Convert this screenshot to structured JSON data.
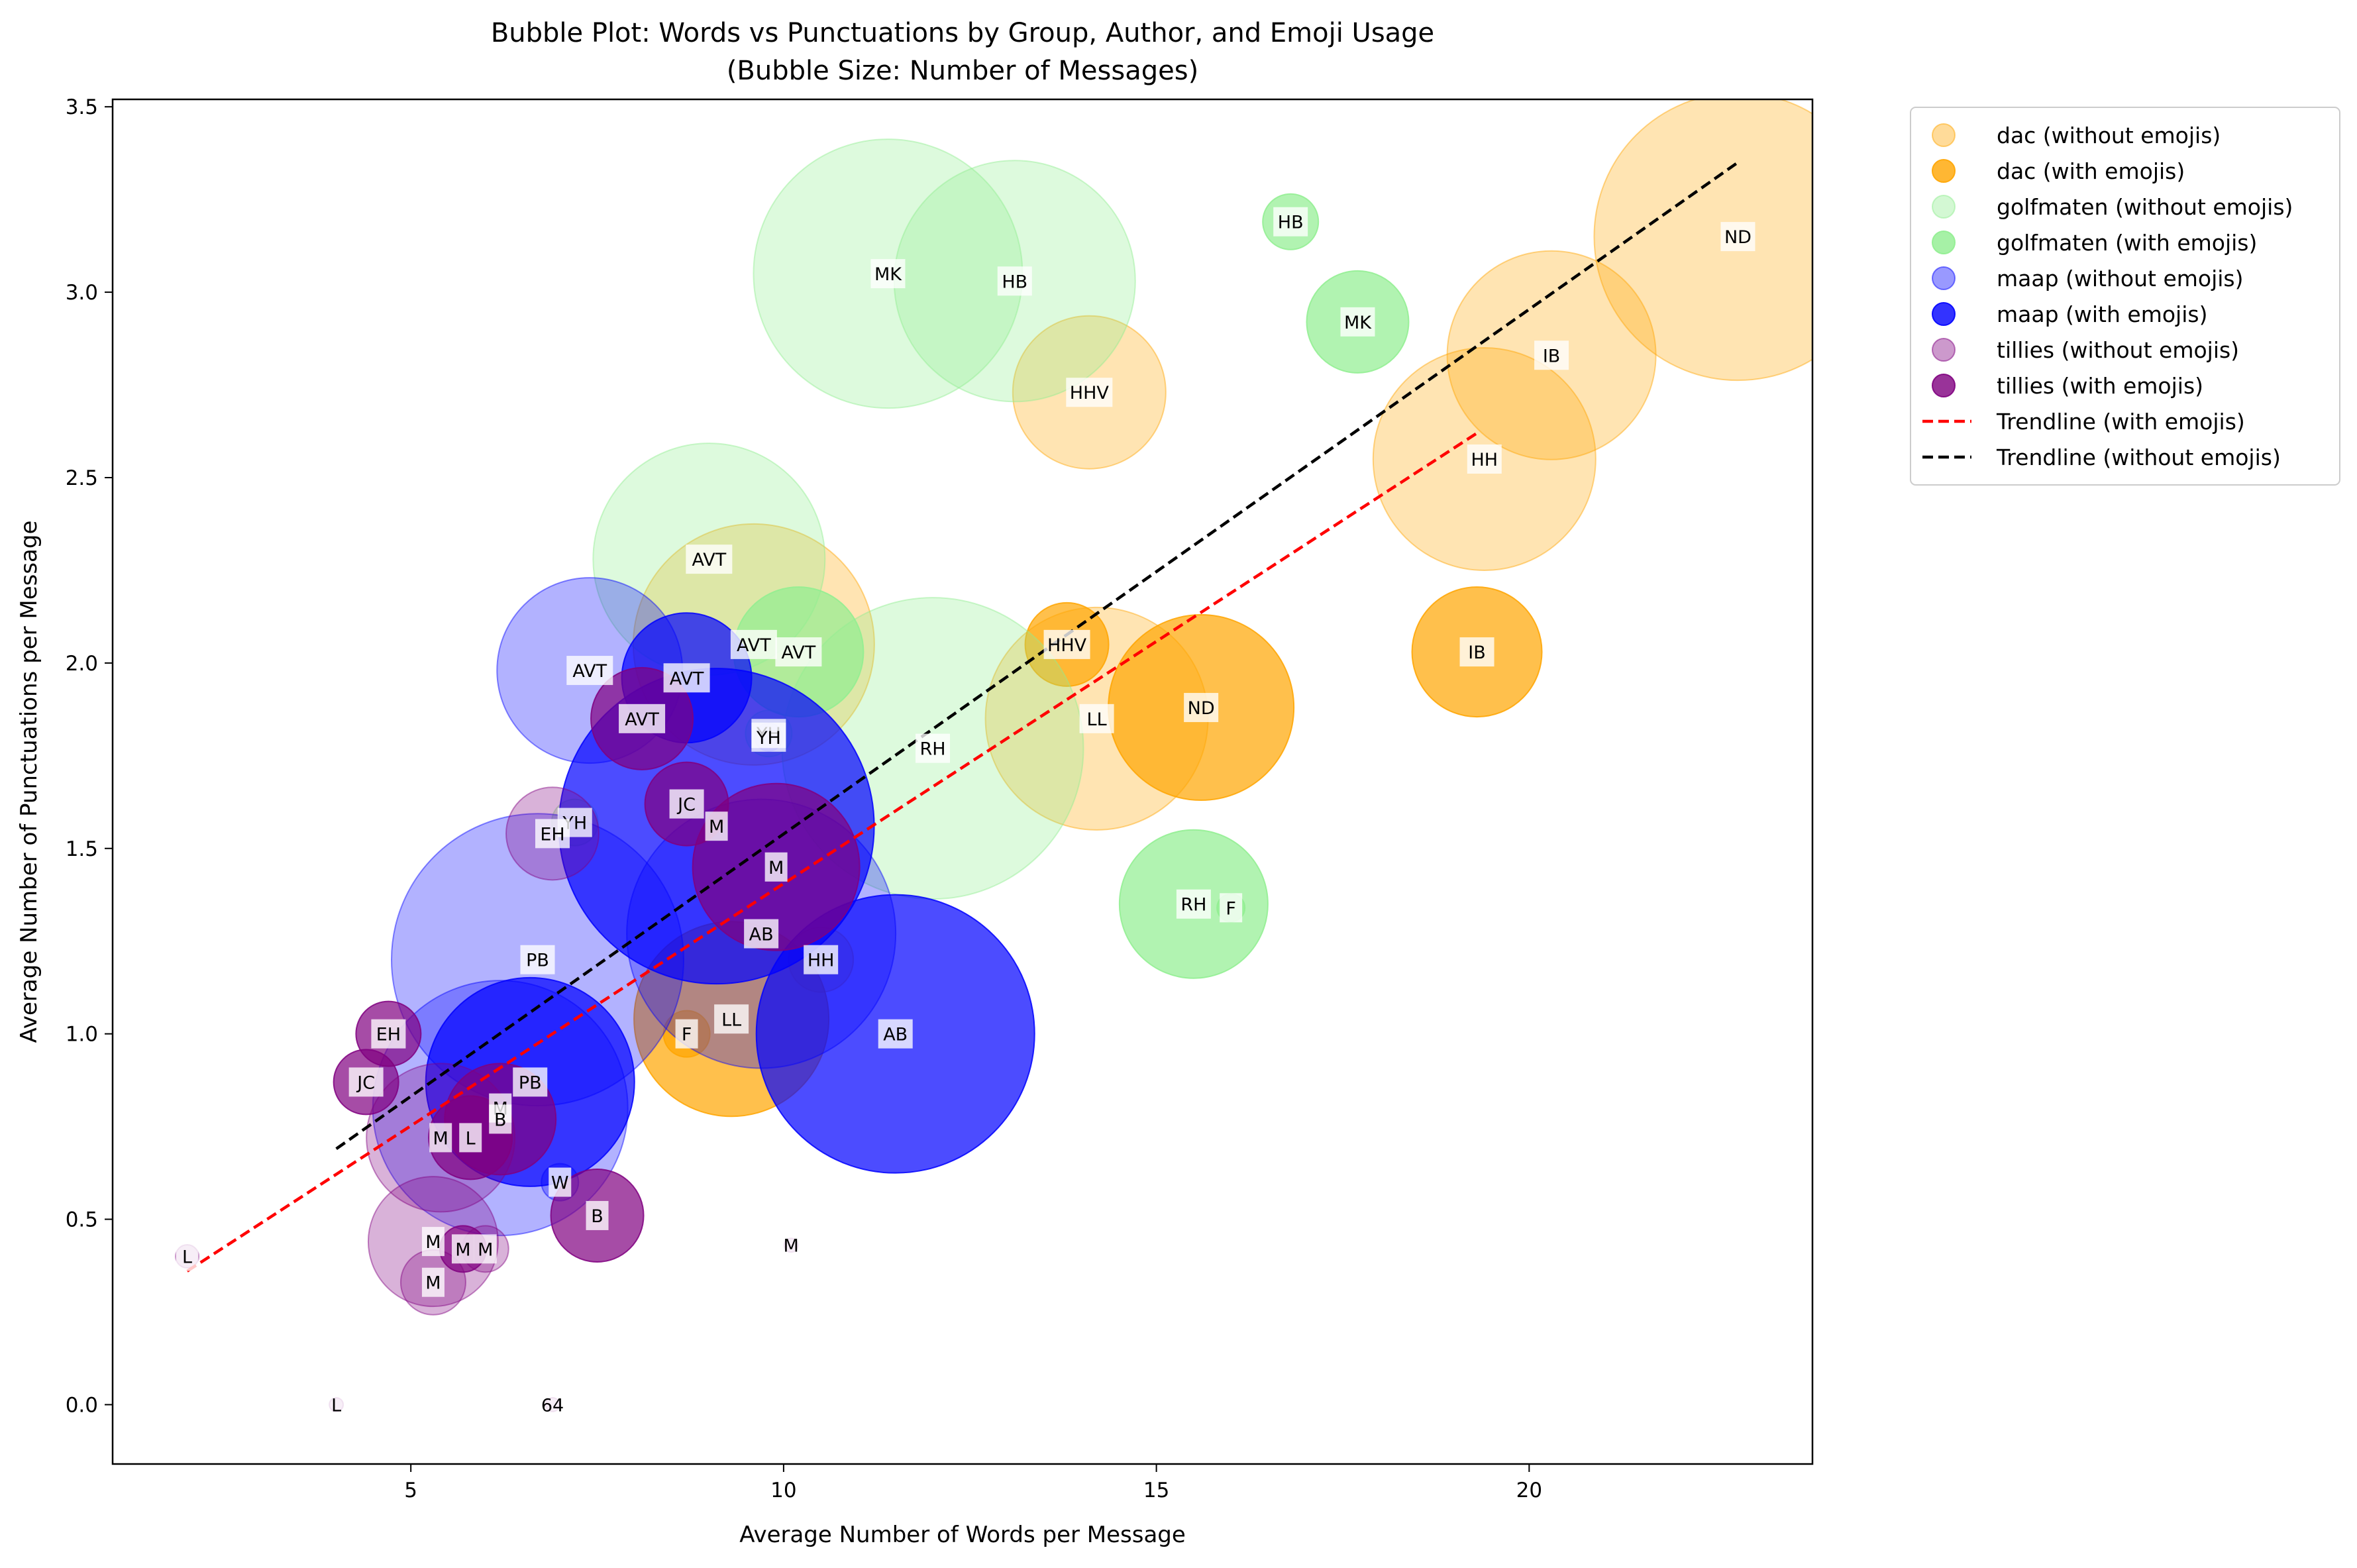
{
  "chart_data": {
    "type": "scatter",
    "title": "Bubble Plot: Words vs Punctuations by Group, Author, and Emoji Usage",
    "subtitle": "(Bubble Size: Number of Messages)",
    "xlabel": "Average Number of Words per Message",
    "ylabel": "Average Number of Punctuations per Message",
    "xlim": [
      1,
      23.8
    ],
    "ylim": [
      -0.16,
      3.52
    ],
    "xticks": [
      5,
      10,
      15,
      20
    ],
    "yticks": [
      0.0,
      0.5,
      1.0,
      1.5,
      2.0,
      2.5,
      3.0,
      3.5
    ],
    "xtick_labels": [
      "5",
      "10",
      "15",
      "20"
    ],
    "ytick_labels": [
      "0.0",
      "0.5",
      "1.0",
      "1.5",
      "2.0",
      "2.5",
      "3.0",
      "3.5"
    ],
    "grid": false,
    "legend_position": "outside upper right",
    "series": [
      {
        "name": "dac (without emojis)",
        "color": "#ffa500",
        "alpha": 0.3,
        "emoji": false,
        "points": [
          {
            "x": 22.8,
            "y": 3.15,
            "size": 62,
            "label": "ND"
          },
          {
            "x": 20.3,
            "y": 2.83,
            "size": 45,
            "label": "IB"
          },
          {
            "x": 19.4,
            "y": 2.55,
            "size": 48,
            "label": "HH"
          },
          {
            "x": 14.1,
            "y": 2.73,
            "size": 33,
            "label": "HHV"
          },
          {
            "x": 14.2,
            "y": 1.85,
            "size": 48,
            "label": "LL"
          },
          {
            "x": 9.6,
            "y": 2.05,
            "size": 52,
            "label": "AVT"
          },
          {
            "x": 10.5,
            "y": 1.2,
            "size": 14,
            "label": "HH"
          }
        ]
      },
      {
        "name": "dac (with emojis)",
        "color": "#ffa500",
        "alpha": 0.7,
        "emoji": true,
        "points": [
          {
            "x": 15.6,
            "y": 1.88,
            "size": 40,
            "label": "ND"
          },
          {
            "x": 19.3,
            "y": 2.03,
            "size": 28,
            "label": "IB"
          },
          {
            "x": 13.8,
            "y": 2.05,
            "size": 18,
            "label": "HHV"
          },
          {
            "x": 9.3,
            "y": 1.04,
            "size": 42,
            "label": "LL"
          },
          {
            "x": 8.7,
            "y": 1.0,
            "size": 10,
            "label": "F"
          }
        ]
      },
      {
        "name": "golfmaten (without emojis)",
        "color": "#90ee90",
        "alpha": 0.3,
        "emoji": false,
        "points": [
          {
            "x": 11.4,
            "y": 3.05,
            "size": 58,
            "label": "MK"
          },
          {
            "x": 13.1,
            "y": 3.03,
            "size": 52,
            "label": "HB"
          },
          {
            "x": 9.0,
            "y": 2.28,
            "size": 50,
            "label": "AVT"
          },
          {
            "x": 12.0,
            "y": 1.77,
            "size": 65,
            "label": "RH"
          },
          {
            "x": 9.8,
            "y": 1.81,
            "size": 10,
            "label": "YH"
          },
          {
            "x": 7.2,
            "y": 1.57,
            "size": 10,
            "label": "YH"
          }
        ]
      },
      {
        "name": "golfmaten (with emojis)",
        "color": "#90ee90",
        "alpha": 0.7,
        "emoji": true,
        "points": [
          {
            "x": 17.7,
            "y": 2.92,
            "size": 22,
            "label": "MK"
          },
          {
            "x": 15.5,
            "y": 1.35,
            "size": 32,
            "label": "RH"
          },
          {
            "x": 10.2,
            "y": 2.03,
            "size": 28,
            "label": "AVT"
          },
          {
            "x": 16.8,
            "y": 3.19,
            "size": 12,
            "label": "HB"
          },
          {
            "x": 16.0,
            "y": 1.34,
            "size": 6,
            "label": "F"
          }
        ]
      },
      {
        "name": "maap (without emojis)",
        "color": "#0000ff",
        "alpha": 0.3,
        "emoji": false,
        "points": [
          {
            "x": 7.4,
            "y": 1.98,
            "size": 40,
            "label": "AVT"
          },
          {
            "x": 6.7,
            "y": 1.2,
            "size": 63,
            "label": "PB"
          },
          {
            "x": 9.7,
            "y": 1.27,
            "size": 58,
            "label": "AB"
          },
          {
            "x": 6.2,
            "y": 0.8,
            "size": 55,
            "label": "M"
          },
          {
            "x": 7.0,
            "y": 0.6,
            "size": 8,
            "label": "W"
          }
        ]
      },
      {
        "name": "maap (with emojis)",
        "color": "#0000ff",
        "alpha": 0.7,
        "emoji": true,
        "points": [
          {
            "x": 9.1,
            "y": 1.56,
            "size": 68,
            "label": "M"
          },
          {
            "x": 11.5,
            "y": 1.0,
            "size": 60,
            "label": "AB"
          },
          {
            "x": 6.6,
            "y": 0.87,
            "size": 45,
            "label": "PB"
          },
          {
            "x": 8.7,
            "y": 1.96,
            "size": 28,
            "label": "AVT"
          },
          {
            "x": 9.8,
            "y": 1.8,
            "size": 6,
            "label": "YH"
          }
        ]
      },
      {
        "name": "tillies (without emojis)",
        "color": "#800080",
        "alpha": 0.3,
        "emoji": false,
        "points": [
          {
            "x": 6.9,
            "y": 1.54,
            "size": 20,
            "label": "EH"
          },
          {
            "x": 5.4,
            "y": 0.72,
            "size": 32,
            "label": "M"
          },
          {
            "x": 5.3,
            "y": 0.44,
            "size": 28,
            "label": "M"
          },
          {
            "x": 6.0,
            "y": 0.42,
            "size": 10,
            "label": "M"
          },
          {
            "x": 5.3,
            "y": 0.33,
            "size": 14,
            "label": "M"
          },
          {
            "x": 2.0,
            "y": 0.4,
            "size": 5,
            "label": "L"
          },
          {
            "x": 4.0,
            "y": 0.0,
            "size": 3,
            "label": "L"
          },
          {
            "x": 10.1,
            "y": 0.43,
            "size": 3,
            "label": "M"
          },
          {
            "x": 6.9,
            "y": 0.0,
            "size": 3,
            "label": "64"
          }
        ]
      },
      {
        "name": "tillies (with emojis)",
        "color": "#800080",
        "alpha": 0.7,
        "emoji": true,
        "points": [
          {
            "x": 9.9,
            "y": 1.45,
            "size": 36,
            "label": "M"
          },
          {
            "x": 8.1,
            "y": 1.85,
            "size": 22,
            "label": "AVT"
          },
          {
            "x": 8.7,
            "y": 1.62,
            "size": 18,
            "label": "JC"
          },
          {
            "x": 4.7,
            "y": 1.0,
            "size": 14,
            "label": "EH"
          },
          {
            "x": 4.4,
            "y": 0.87,
            "size": 14,
            "label": "JC"
          },
          {
            "x": 7.5,
            "y": 0.51,
            "size": 20,
            "label": "B"
          },
          {
            "x": 6.2,
            "y": 0.77,
            "size": 24,
            "label": "B"
          },
          {
            "x": 5.8,
            "y": 0.72,
            "size": 18,
            "label": "L"
          },
          {
            "x": 5.7,
            "y": 0.42,
            "size": 10,
            "label": "M"
          }
        ]
      }
    ],
    "trendlines": [
      {
        "name": "Trendline (with emojis)",
        "color": "#ff0000",
        "style": "dashed",
        "x": [
          2.0,
          19.3
        ],
        "y": [
          0.36,
          2.62
        ]
      },
      {
        "name": "Trendline (without emojis)",
        "color": "#000000",
        "style": "dashed",
        "x": [
          4.0,
          22.8
        ],
        "y": [
          0.69,
          3.35
        ]
      }
    ]
  }
}
